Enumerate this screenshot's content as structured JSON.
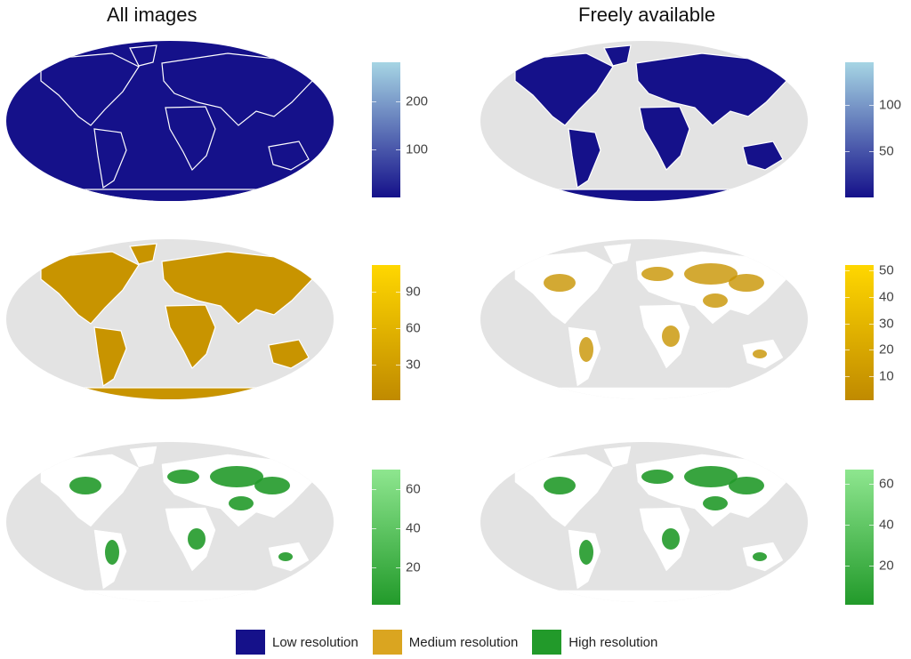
{
  "columns": [
    "All images",
    "Freely available"
  ],
  "colors": {
    "ocean": "#e3e3e3",
    "land": "#ffffff",
    "low": "#15118a",
    "medium": "#c89400",
    "high": "#229a2a"
  },
  "rows": [
    {
      "key": "low",
      "gradient": [
        "#15118a",
        "#a6d5e4"
      ],
      "panels": [
        {
          "range": [
            1,
            280
          ],
          "ticks": [
            100,
            200
          ],
          "mode": "all"
        },
        {
          "range": [
            1,
            145
          ],
          "ticks": [
            50,
            100
          ],
          "mode": "land"
        }
      ]
    },
    {
      "key": "medium",
      "gradient": [
        "#c08a00",
        "#ffd700"
      ],
      "panels": [
        {
          "range": [
            1,
            112
          ],
          "ticks": [
            30,
            60,
            90
          ],
          "mode": "land"
        },
        {
          "range": [
            1,
            52
          ],
          "ticks": [
            10,
            20,
            30,
            40,
            50
          ],
          "mode": "partial"
        }
      ]
    },
    {
      "key": "high",
      "gradient": [
        "#229a2a",
        "#8ee68f"
      ],
      "panels": [
        {
          "range": [
            1,
            70
          ],
          "ticks": [
            20,
            40,
            60
          ],
          "mode": "sparse"
        },
        {
          "range": [
            1,
            67
          ],
          "ticks": [
            20,
            40,
            60
          ],
          "mode": "sparse"
        }
      ]
    }
  ],
  "legend": [
    {
      "label": "Low resolution",
      "color": "#15118a"
    },
    {
      "label": "Medium resolution",
      "color": "#daa520"
    },
    {
      "label": "High resolution",
      "color": "#229a2a"
    }
  ]
}
